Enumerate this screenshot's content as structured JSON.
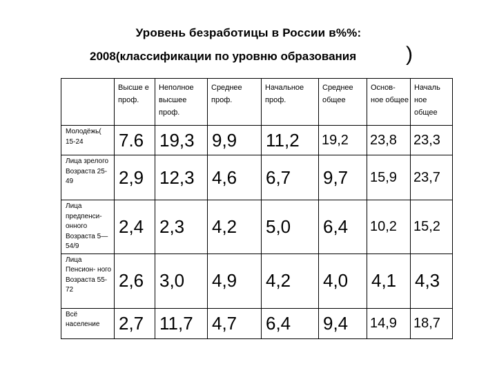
{
  "title": {
    "line1": "Уровень безработицы в России в%%:",
    "line2": "2008(классификации по уровню образования",
    "paren": ")"
  },
  "table": {
    "headers": [
      "",
      "Высше е проф.",
      "Неполное высшее проф.",
      "Среднее проф.",
      "Начальное проф.",
      "Среднее общее",
      "Основ- ное общее",
      "Началь ное общее"
    ],
    "rows": [
      {
        "label": "Молодёжь( 15-24",
        "values": [
          "7.6",
          "19,3",
          "9,9",
          "11,2",
          "19,2",
          "23,8",
          "23,3"
        ]
      },
      {
        "label": "Лица зрелого Возраста 25-49",
        "values": [
          "2,9",
          "12,3",
          "4,6",
          "6,7",
          "9,7",
          "15,9",
          "23,7"
        ]
      },
      {
        "label": "Лица предпенси- онного Возраста 5—54/9",
        "values": [
          "2,4",
          "2,3",
          "4,2",
          "5,0",
          "6,4",
          "10,2",
          "15,2"
        ]
      },
      {
        "label": "Лица Пенсион- ного Возраста 55-72",
        "values": [
          "2,6",
          "3,0",
          "4,9",
          "4,2",
          "4,0",
          "4,1",
          "4,3"
        ]
      },
      {
        "label": "Всё население",
        "values": [
          "2,7",
          "11,7",
          "4,7",
          "6,4",
          "9,4",
          "14,9",
          "18,7"
        ]
      }
    ]
  }
}
